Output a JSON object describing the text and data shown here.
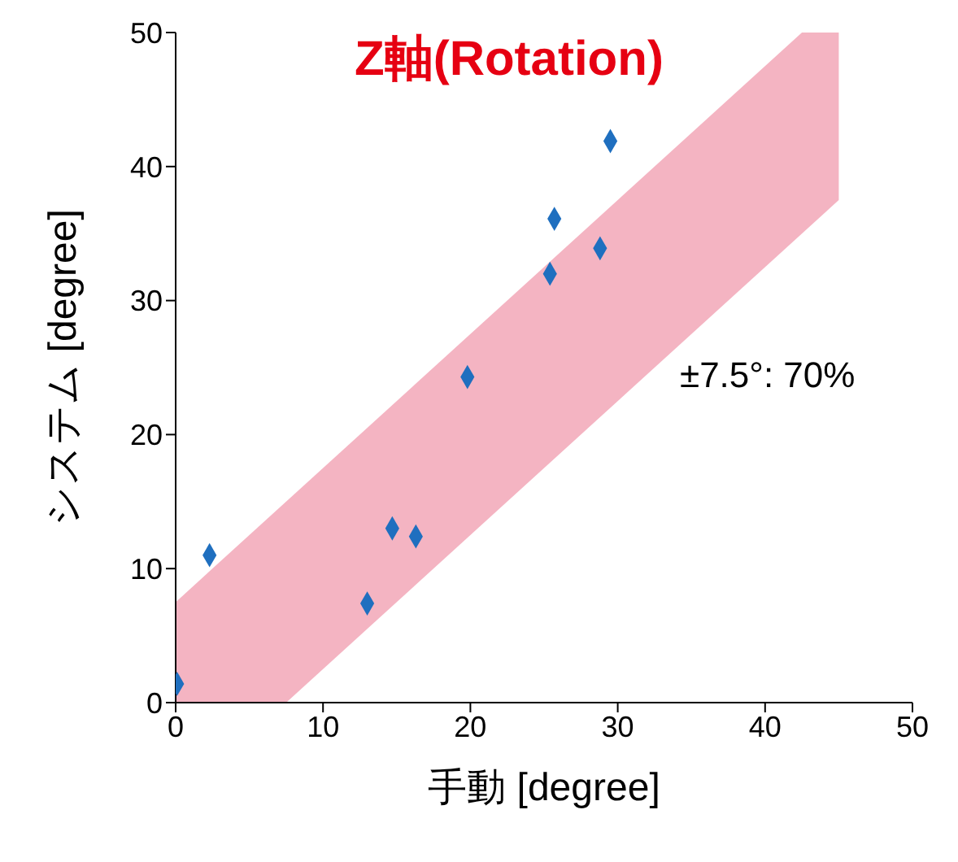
{
  "chart_data": {
    "type": "scatter",
    "title": "Z軸(Rotation)",
    "xlabel": "手動 [degree]",
    "ylabel": "システム [degree]",
    "xlim": [
      0,
      50
    ],
    "ylim": [
      0,
      50
    ],
    "xticks": [
      0,
      10,
      20,
      30,
      40,
      50
    ],
    "yticks": [
      0,
      10,
      20,
      30,
      40,
      50
    ],
    "grid": false,
    "marker": "diamond",
    "annotations": [
      "±7.5°: 70%"
    ],
    "series": [
      {
        "type": "scatter",
        "color": "#1f6fbf",
        "x": [
          0.1,
          2.3,
          13.0,
          14.7,
          16.3,
          19.8,
          25.4,
          25.7,
          28.8,
          29.5
        ],
        "values": [
          1.4,
          11.0,
          7.4,
          13.0,
          12.4,
          24.3,
          32.0,
          36.1,
          33.9,
          41.9
        ]
      },
      {
        "type": "area",
        "color": "#f2a7b7",
        "x": [
          0,
          7.5,
          42.5,
          45
        ],
        "values": [
          null,
          null,
          null,
          null
        ],
        "lower": [
          0,
          0,
          35,
          37.5
        ],
        "upper": [
          7.5,
          15,
          50,
          50
        ]
      }
    ]
  }
}
